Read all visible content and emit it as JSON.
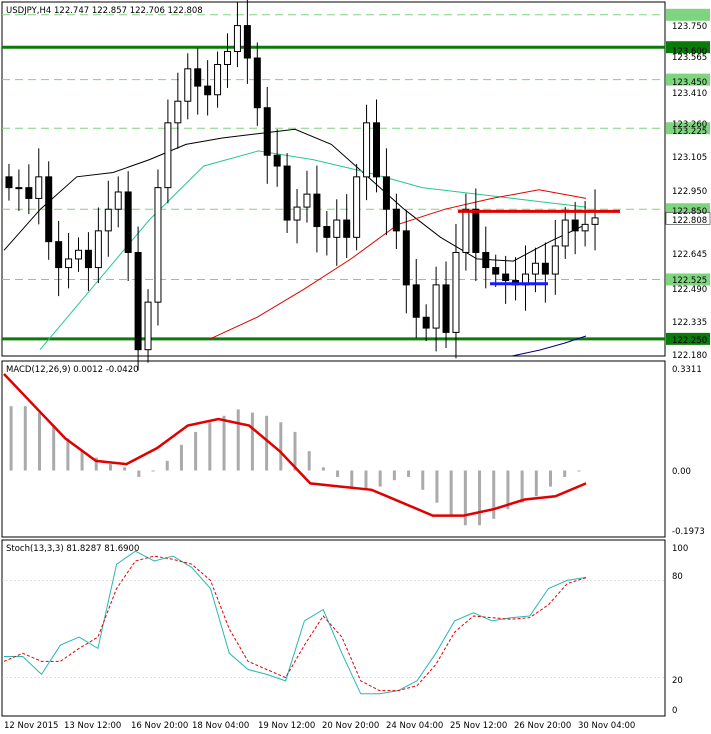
{
  "price_panel": {
    "header": "USDJPY,H4  122.747 122.857 122.706 122.808",
    "price_ticks": [
      "123.750",
      "123.600",
      "123.565",
      "123.450",
      "123.410",
      "123.260",
      "123.225",
      "123.105",
      "122.950",
      "122.850",
      "122.808",
      "122.645",
      "122.525",
      "122.490",
      "122.335",
      "122.250",
      "122.180"
    ],
    "levels": [
      {
        "label": "123.750",
        "kind": "dashed"
      },
      {
        "label": "123.600",
        "kind": "solid"
      },
      {
        "label": "123.450",
        "kind": "dashed"
      },
      {
        "label": "123.225",
        "kind": "dashed"
      },
      {
        "label": "122.850",
        "kind": "dashed"
      },
      {
        "label": "122.525",
        "kind": "dashed"
      },
      {
        "label": "122.250",
        "kind": "solid"
      }
    ],
    "current_price": "122.808",
    "colors": {
      "solid_level": "#0a7a0a",
      "dashed_level": "#7fd47f",
      "tag_green": "#7fd47f",
      "tag_dark": "#0a7a0a",
      "current_tag": "#ffffff",
      "ma_black": "#000000",
      "ma_teal": "#26c98c",
      "ma_red": "#e00000",
      "ma_blue": "#00007a",
      "red_line": "#e00000",
      "blue_line": "#1a1aff"
    }
  },
  "macd_panel": {
    "header": "MACD(12,26,9) 0.0012 -0.0420",
    "ticks": [
      "0.3311",
      "0.00",
      "-0.1973"
    ],
    "colors": {
      "histogram": "#aaaaaa",
      "signal": "#e00000"
    }
  },
  "stoch_panel": {
    "header": "Stoch(13,3,3) 81.8287 81.6900",
    "ticks": [
      "100",
      "80",
      "20",
      "0"
    ],
    "colors": {
      "main": "#2ab5b5",
      "signal": "#e00000"
    }
  },
  "time_axis": [
    "12 Nov 2015",
    "13 Nov 12:00",
    "16 Nov 20:00",
    "18 Nov 04:00",
    "19 Nov 12:00",
    "20 Nov 20:00",
    "24 Nov 04:00",
    "25 Nov 12:00",
    "26 Nov 20:00",
    "30 Nov 04:00"
  ],
  "chart_data": [
    {
      "type": "line",
      "title": "USDJPY,H4",
      "ylim": [
        122.18,
        123.8
      ],
      "series": [
        {
          "name": "Close",
          "values": [
            122.95,
            122.95,
            122.9,
            123.0,
            122.7,
            122.58,
            122.62,
            122.66,
            122.58,
            122.75,
            122.85,
            122.93,
            122.65,
            122.2,
            122.42,
            122.95,
            123.25,
            123.35,
            123.5,
            123.42,
            123.38,
            123.52,
            123.58,
            123.7,
            123.55,
            123.32,
            123.1,
            123.05,
            122.8,
            122.86,
            122.92,
            122.77,
            122.72,
            122.8,
            122.72,
            123.0,
            123.25,
            123.0,
            122.85,
            122.75,
            122.5,
            122.35,
            122.3,
            122.5,
            122.28,
            122.65,
            122.85,
            122.65,
            122.58,
            122.55,
            122.52,
            122.5,
            122.55,
            122.6,
            122.55,
            122.68,
            122.8,
            122.75,
            122.78,
            122.81
          ]
        },
        {
          "name": "MA black",
          "values": [
            122.66,
            122.85,
            123.0,
            123.02,
            123.08,
            123.15,
            123.18,
            123.2,
            123.22,
            123.15,
            123.0,
            122.85,
            122.72,
            122.62,
            122.61,
            122.7,
            122.78
          ]
        },
        {
          "name": "MA teal",
          "values": [
            122.2,
            122.5,
            122.8,
            123.05,
            123.12,
            123.08,
            123.02,
            122.95,
            122.92,
            122.89,
            122.86
          ]
        },
        {
          "name": "MA red",
          "values": [
            122.25,
            122.35,
            122.48,
            122.62,
            122.78,
            122.85,
            122.9,
            122.94,
            122.9
          ]
        }
      ]
    },
    {
      "type": "bar",
      "title": "MACD(12,26,9)",
      "ylim": [
        -0.1973,
        0.3311
      ],
      "series": [
        {
          "name": "Histogram",
          "values": [
            0.2,
            0.2,
            0.18,
            0.14,
            0.1,
            0.06,
            0.04,
            0.02,
            0.01,
            -0.02,
            0.0,
            0.03,
            0.08,
            0.12,
            0.15,
            0.17,
            0.19,
            0.18,
            0.17,
            0.15,
            0.12,
            0.06,
            0.01,
            -0.02,
            -0.05,
            -0.06,
            -0.05,
            -0.03,
            -0.02,
            -0.06,
            -0.1,
            -0.14,
            -0.17,
            -0.17,
            -0.15,
            -0.12,
            -0.1,
            -0.08,
            -0.05,
            -0.02,
            0.0
          ]
        },
        {
          "name": "Signal",
          "values": [
            0.3,
            0.2,
            0.1,
            0.03,
            0.02,
            0.07,
            0.14,
            0.16,
            0.14,
            0.06,
            -0.04,
            -0.05,
            -0.06,
            -0.1,
            -0.14,
            -0.14,
            -0.12,
            -0.09,
            -0.08,
            -0.04
          ]
        }
      ]
    },
    {
      "type": "line",
      "title": "Stoch(13,3,3)",
      "ylim": [
        0,
        100
      ],
      "series": [
        {
          "name": "Main",
          "values": [
            33,
            33,
            22,
            40,
            45,
            38,
            90,
            98,
            92,
            95,
            88,
            75,
            35,
            25,
            22,
            18,
            55,
            62,
            35,
            10,
            10,
            12,
            18,
            35,
            55,
            60,
            55,
            57,
            58,
            75,
            80,
            81.83
          ]
        },
        {
          "name": "Signal",
          "values": [
            30,
            35,
            30,
            30,
            38,
            45,
            75,
            92,
            95,
            93,
            90,
            80,
            50,
            30,
            25,
            20,
            40,
            58,
            45,
            18,
            12,
            12,
            15,
            28,
            48,
            58,
            57,
            56,
            57,
            65,
            78,
            81.69
          ]
        }
      ]
    }
  ]
}
